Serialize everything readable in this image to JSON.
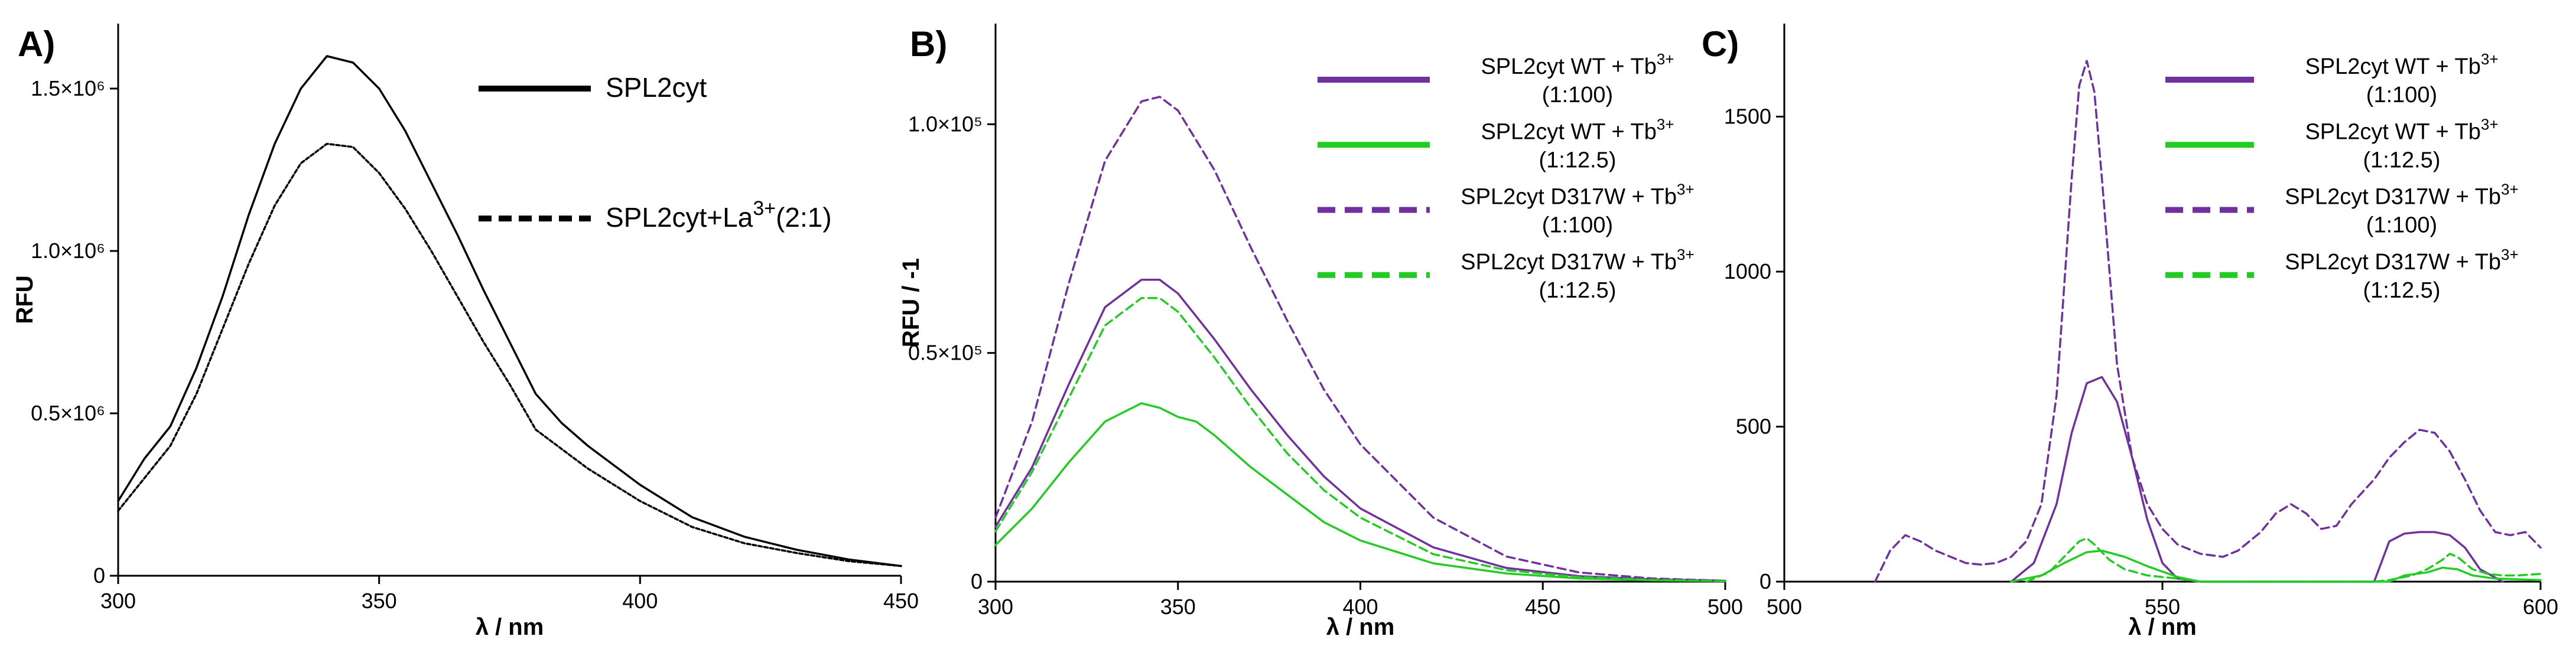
{
  "chart_data": [
    {
      "id": "A",
      "type": "line",
      "panel_label": "A)",
      "xlabel": "λ / nm",
      "ylabel": "RFU",
      "xlim": [
        300,
        450
      ],
      "ylim": [
        0,
        1700000
      ],
      "xticks": [
        300,
        350,
        400,
        450
      ],
      "yticks": [
        0,
        500000,
        1000000,
        1500000
      ],
      "ytick_labels": [
        "0",
        "0.5×10⁶",
        "1.0×10⁶",
        "1.5×10⁶"
      ],
      "legend_position": "top-right",
      "series": [
        {
          "name": "SPL2cyt",
          "legend_main": "SPL2cyt",
          "legend_sup": "",
          "legend_tail": "",
          "legend_sub": "",
          "color": "#000000",
          "dash": "solid",
          "x": [
            300,
            305,
            310,
            315,
            320,
            325,
            330,
            335,
            340,
            345,
            350,
            355,
            360,
            365,
            370,
            375,
            380,
            385,
            390,
            400,
            410,
            420,
            430,
            440,
            450
          ],
          "y": [
            230000,
            360000,
            460000,
            640000,
            860000,
            1110000,
            1330000,
            1500000,
            1600000,
            1580000,
            1500000,
            1370000,
            1210000,
            1050000,
            880000,
            720000,
            560000,
            470000,
            400000,
            280000,
            180000,
            120000,
            80000,
            50000,
            30000
          ]
        },
        {
          "name": "SPL2cyt+La3+(2:1)",
          "legend_main": "SPL2cyt+La",
          "legend_sup": "3+",
          "legend_tail": "(2:1)",
          "legend_sub": "",
          "color": "#000000",
          "dash": "dotted",
          "x": [
            300,
            305,
            310,
            315,
            320,
            325,
            330,
            335,
            340,
            345,
            350,
            355,
            360,
            365,
            370,
            375,
            380,
            385,
            390,
            400,
            410,
            420,
            430,
            440,
            450
          ],
          "y": [
            200000,
            300000,
            400000,
            560000,
            760000,
            960000,
            1140000,
            1270000,
            1330000,
            1320000,
            1240000,
            1130000,
            1000000,
            860000,
            720000,
            590000,
            450000,
            390000,
            330000,
            230000,
            150000,
            100000,
            70000,
            45000,
            30000
          ]
        }
      ]
    },
    {
      "id": "B",
      "type": "line",
      "panel_label": "B)",
      "xlabel": "λ / nm",
      "ylabel": "RFU / -1",
      "xlim": [
        300,
        500
      ],
      "ylim": [
        0,
        122000
      ],
      "xticks": [
        300,
        350,
        400,
        450,
        500
      ],
      "yticks": [
        0,
        50000,
        100000
      ],
      "ytick_labels": [
        "0",
        "0.5×10⁵",
        "1.0×10⁵"
      ],
      "legend_position": "top-right",
      "series": [
        {
          "name": "SPL2cyt WT + Tb3+ (1:100)",
          "legend_main": "SPL2cyt WT + Tb",
          "legend_sup": "3+",
          "legend_tail": "",
          "legend_sub": "(1:100)",
          "color": "#7030A0",
          "dash": "solid",
          "x": [
            300,
            310,
            320,
            330,
            340,
            345,
            350,
            360,
            370,
            380,
            390,
            400,
            420,
            440,
            460,
            480,
            500
          ],
          "y": [
            12000,
            25000,
            43000,
            60000,
            66000,
            66000,
            63000,
            53000,
            42000,
            32000,
            23000,
            16000,
            7500,
            3000,
            1200,
            500,
            200
          ]
        },
        {
          "name": "SPL2cyt WT + Tb3+ (1:12.5)",
          "legend_main": "SPL2cyt WT + Tb",
          "legend_sup": "3+",
          "legend_tail": "",
          "legend_sub": "(1:12.5)",
          "color": "#22CC22",
          "dash": "solid",
          "x": [
            300,
            310,
            320,
            330,
            340,
            345,
            350,
            355,
            360,
            370,
            380,
            390,
            400,
            420,
            440,
            460,
            480,
            500
          ],
          "y": [
            8000,
            16000,
            26000,
            35000,
            39000,
            38000,
            36000,
            35000,
            32000,
            25000,
            19000,
            13000,
            9000,
            4000,
            1800,
            700,
            300,
            100
          ]
        },
        {
          "name": "SPL2cyt D317W + Tb3+ (1:100)",
          "legend_main": "SPL2cyt D317W + Tb",
          "legend_sup": "3+",
          "legend_tail": "",
          "legend_sub": "(1:100)",
          "color": "#7030A0",
          "dash": "dashed",
          "x": [
            300,
            310,
            320,
            330,
            340,
            345,
            350,
            360,
            370,
            380,
            390,
            400,
            420,
            440,
            460,
            480,
            500
          ],
          "y": [
            14000,
            35000,
            65000,
            92000,
            105000,
            106000,
            103000,
            90000,
            73000,
            57000,
            42000,
            30000,
            14000,
            5500,
            2000,
            700,
            200
          ]
        },
        {
          "name": "SPL2cyt D317W + Tb3+ (1:12.5)",
          "legend_main": "SPL2cyt D317W + Tb",
          "legend_sup": "3+",
          "legend_tail": "",
          "legend_sub": "(1:12.5)",
          "color": "#22CC22",
          "dash": "dashed",
          "x": [
            300,
            310,
            320,
            330,
            340,
            345,
            350,
            360,
            370,
            380,
            390,
            400,
            420,
            440,
            460,
            480,
            500
          ],
          "y": [
            11000,
            24000,
            40000,
            56000,
            62000,
            62000,
            59000,
            49000,
            38000,
            28000,
            20000,
            14000,
            6000,
            2500,
            1000,
            400,
            100
          ]
        }
      ]
    },
    {
      "id": "C",
      "type": "line",
      "panel_label": "C)",
      "xlabel": "λ / nm",
      "ylabel": "",
      "xlim": [
        500,
        600
      ],
      "ylim": [
        0,
        1800
      ],
      "xticks": [
        500,
        550,
        600
      ],
      "yticks": [
        0,
        500,
        1000,
        1500
      ],
      "ytick_labels": [
        "0",
        "500",
        "1000",
        "1500"
      ],
      "legend_position": "top-right",
      "series": [
        {
          "name": "SPL2cyt WT + Tb3+ (1:100)",
          "legend_main": "SPL2cyt WT + Tb",
          "legend_sup": "3+",
          "legend_tail": "",
          "legend_sub": "(1:100)",
          "color": "#7030A0",
          "dash": "solid",
          "x": [
            530,
            533,
            536,
            538,
            540,
            542,
            544,
            546,
            548,
            550,
            552,
            555,
            560,
            570,
            578,
            580,
            582,
            584,
            586,
            588,
            590,
            592,
            595
          ],
          "y": [
            0,
            60,
            250,
            480,
            640,
            660,
            580,
            400,
            200,
            60,
            10,
            0,
            0,
            0,
            0,
            130,
            155,
            160,
            160,
            150,
            110,
            40,
            0
          ]
        },
        {
          "name": "SPL2cyt WT + Tb3+ (1:12.5)",
          "legend_main": "SPL2cyt WT + Tb",
          "legend_sup": "3+",
          "legend_tail": "",
          "legend_sub": "(1:12.5)",
          "color": "#22CC22",
          "dash": "solid",
          "x": [
            530,
            534,
            537,
            540,
            542,
            545,
            548,
            552,
            555,
            560,
            580,
            582,
            585,
            587,
            589,
            591,
            594,
            600
          ],
          "y": [
            0,
            20,
            60,
            95,
            100,
            80,
            50,
            15,
            0,
            0,
            0,
            20,
            30,
            45,
            40,
            20,
            10,
            5
          ]
        },
        {
          "name": "SPL2cyt D317W + Tb3+ (1:100)",
          "legend_main": "SPL2cyt D317W + Tb",
          "legend_sup": "3+",
          "legend_tail": "",
          "legend_sub": "(1:100)",
          "color": "#7030A0",
          "dash": "dashed",
          "x": [
            512,
            514,
            516,
            518,
            520,
            522,
            524,
            526,
            528,
            530,
            532,
            534,
            536,
            538,
            539,
            540,
            541,
            542,
            544,
            546,
            548,
            550,
            552,
            555,
            558,
            560,
            563,
            565,
            567,
            569,
            571,
            573,
            575,
            578,
            580,
            582,
            584,
            586,
            588,
            590,
            592,
            594,
            596,
            598,
            600
          ],
          "y": [
            0,
            100,
            150,
            130,
            100,
            80,
            60,
            55,
            60,
            80,
            130,
            250,
            600,
            1300,
            1600,
            1680,
            1580,
            1300,
            700,
            400,
            250,
            170,
            120,
            90,
            80,
            100,
            160,
            220,
            250,
            220,
            170,
            180,
            250,
            330,
            400,
            450,
            490,
            480,
            420,
            330,
            230,
            160,
            150,
            160,
            110
          ]
        },
        {
          "name": "SPL2cyt D317W + Tb3+ (1:12.5)",
          "legend_main": "SPL2cyt D317W + Tb",
          "legend_sup": "3+",
          "legend_tail": "",
          "legend_sub": "(1:12.5)",
          "color": "#22CC22",
          "dash": "dashed",
          "x": [
            532,
            535,
            537,
            539,
            540,
            541,
            543,
            545,
            548,
            552,
            555,
            560,
            578,
            580,
            583,
            585,
            587,
            588,
            589,
            591,
            593,
            595,
            597,
            600
          ],
          "y": [
            0,
            30,
            80,
            130,
            140,
            120,
            70,
            40,
            20,
            10,
            0,
            0,
            0,
            5,
            20,
            40,
            70,
            90,
            80,
            40,
            25,
            20,
            20,
            25
          ]
        }
      ]
    }
  ]
}
